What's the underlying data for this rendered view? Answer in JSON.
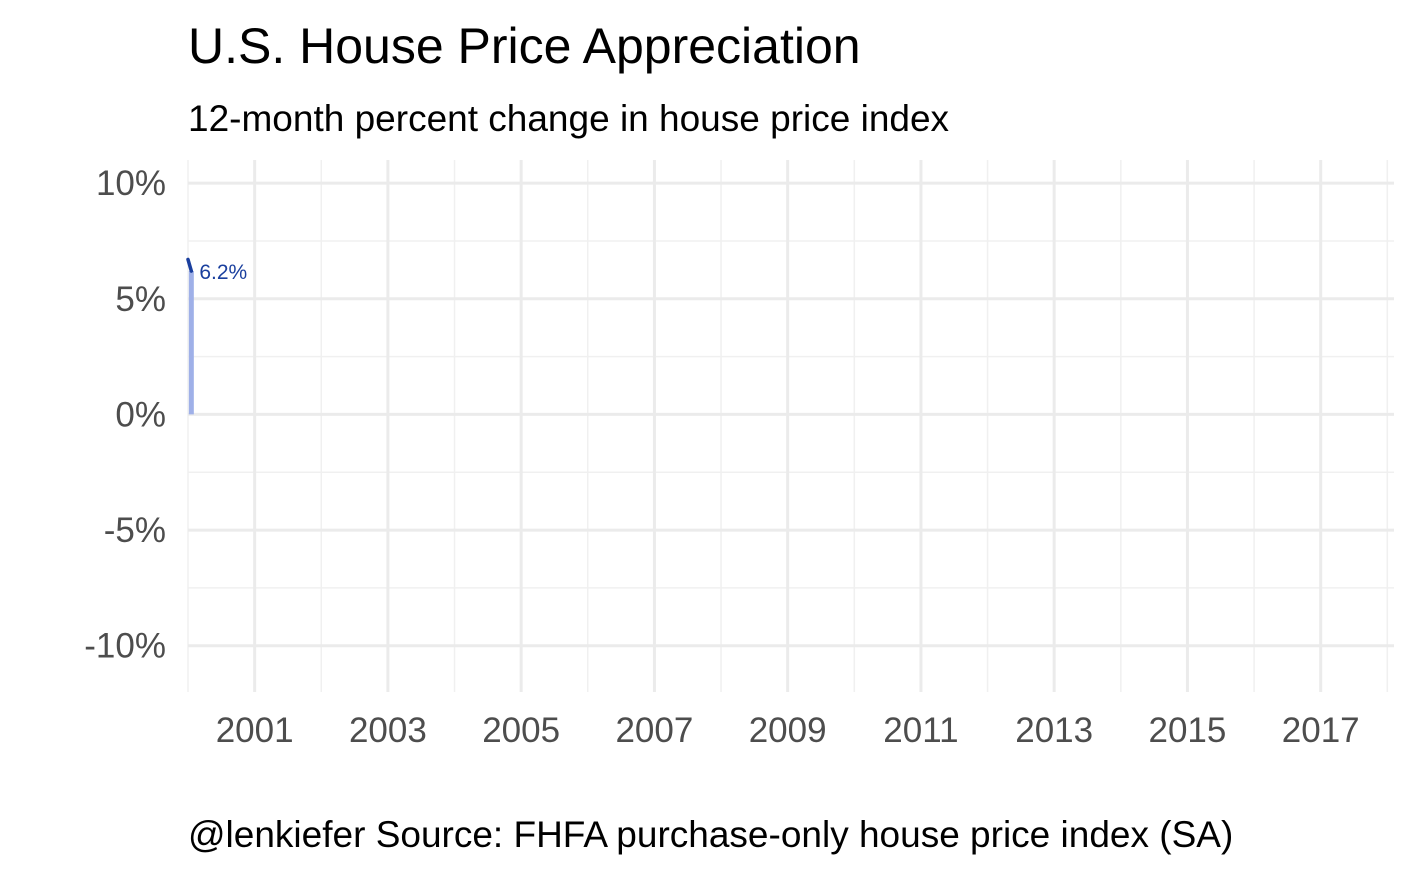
{
  "chart_data": {
    "type": "line",
    "title": "U.S. House Price Appreciation",
    "subtitle": "12-month percent change in house price index",
    "caption": "@lenkiefer Source: FHFA purchase-only house price index (SA)",
    "xlabel": "",
    "ylabel": "",
    "xlim": [
      2000,
      2018.1
    ],
    "ylim": [
      -12,
      11
    ],
    "x_ticks": [
      2001,
      2003,
      2005,
      2007,
      2009,
      2011,
      2013,
      2015,
      2017
    ],
    "x_tick_labels": [
      "2001",
      "2003",
      "2005",
      "2007",
      "2009",
      "2011",
      "2013",
      "2015",
      "2017"
    ],
    "y_ticks": [
      -10,
      -5,
      0,
      5,
      10
    ],
    "y_tick_labels": [
      "-10%",
      "-5%",
      "0%",
      "5%",
      "10%"
    ],
    "grid": true,
    "series": [
      {
        "x": [
          2000.0,
          2000.02,
          2000.05
        ],
        "y": [
          6.7,
          6.5,
          6.2
        ],
        "color": "#1a3f9e"
      }
    ],
    "segment": {
      "x": 2000.05,
      "y0": 0,
      "y1": 6.2,
      "color": "#9fb0e8"
    },
    "annotation": {
      "x": 2000.05,
      "y": 6.2,
      "text": "6.2%",
      "color": "#1a3f9e"
    }
  }
}
